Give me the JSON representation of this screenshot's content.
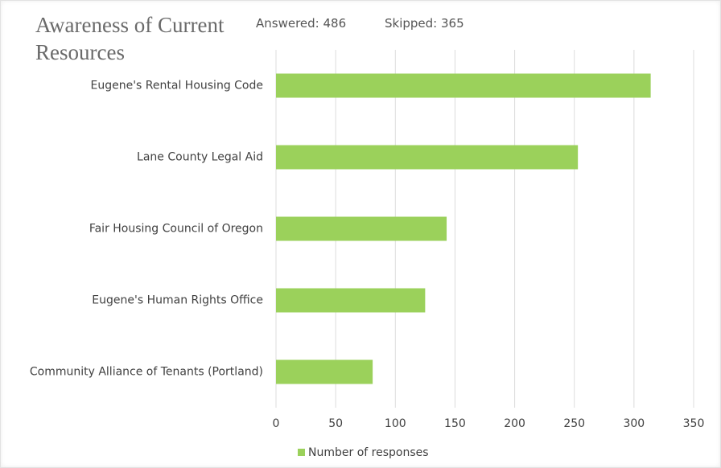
{
  "chart_data": {
    "type": "bar",
    "orientation": "horizontal",
    "title": "Awareness of Current Resources",
    "subtitle_items": [
      "Answered: 486",
      "Skipped: 365"
    ],
    "categories": [
      "Eugene's Rental Housing Code",
      "Lane County Legal Aid",
      "Fair Housing Council of Oregon",
      "Eugene's Human Rights Office",
      "Community Alliance of Tenants (Portland)"
    ],
    "series": [
      {
        "name": "Number of responses",
        "color": "#9bd15b",
        "values": [
          314,
          253,
          143,
          125,
          81
        ]
      }
    ],
    "xlim": [
      0,
      350
    ],
    "xticks": [
      0,
      50,
      100,
      150,
      200,
      250,
      300,
      350
    ],
    "grid": true,
    "legend": "bottom"
  }
}
